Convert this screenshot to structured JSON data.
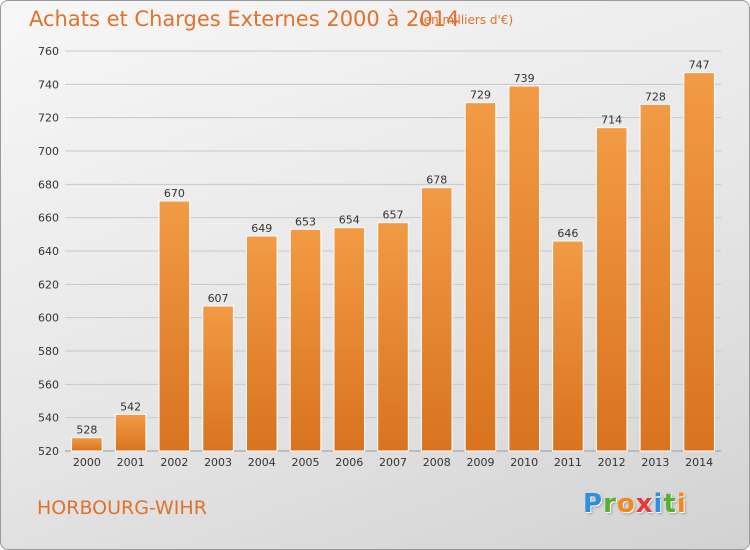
{
  "chart_data": {
    "type": "bar",
    "title": "Achats et Charges Externes 2000 à 2014",
    "subtitle": "(en milliers d'€)",
    "categories": [
      "2000",
      "2001",
      "2002",
      "2003",
      "2004",
      "2005",
      "2006",
      "2007",
      "2008",
      "2009",
      "2010",
      "2011",
      "2012",
      "2013",
      "2014"
    ],
    "values": [
      528,
      542,
      670,
      607,
      649,
      653,
      654,
      657,
      678,
      729,
      739,
      646,
      714,
      728,
      747
    ],
    "ylim": [
      520,
      760
    ],
    "yticks": [
      520,
      540,
      560,
      580,
      600,
      620,
      640,
      660,
      680,
      700,
      720,
      740,
      760
    ],
    "grid": true,
    "xlabel": "",
    "ylabel": "",
    "bar_color": "#f29a45",
    "bar_color_dark": "#d9731f",
    "grid_color": "#c8c8c8"
  },
  "footer": {
    "location": "HORBOURG-WIHR"
  },
  "logo": {
    "letters": [
      {
        "ch": "P",
        "color": "#2f8fd8"
      },
      {
        "ch": "r",
        "color": "#58b030"
      },
      {
        "ch": "o",
        "color": "#f08a1c"
      },
      {
        "ch": "x",
        "color": "#e23a3a"
      },
      {
        "ch": "i",
        "color": "#2f8fd8"
      },
      {
        "ch": "t",
        "color": "#58b030"
      },
      {
        "ch": "i",
        "color": "#f08a1c"
      }
    ]
  }
}
